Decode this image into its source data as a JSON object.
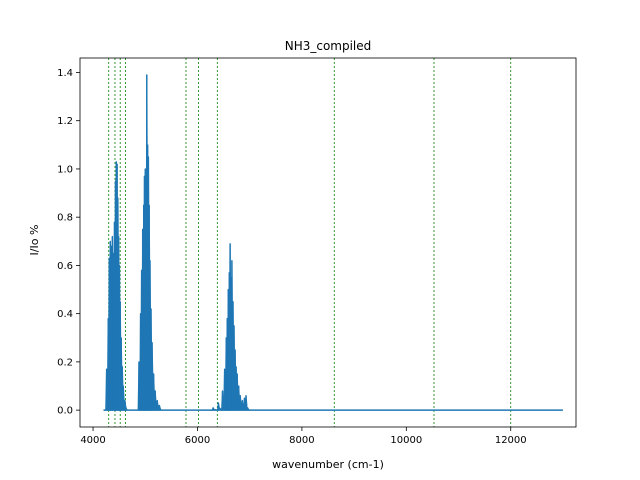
{
  "chart_data": {
    "type": "line",
    "title": "NH3_compiled",
    "xlabel": "wavenumber (cm-1)",
    "ylabel": "I/Io %",
    "xlim": [
      3750,
      13250
    ],
    "ylim": [
      -0.07,
      1.46
    ],
    "xticks": [
      4000,
      6000,
      8000,
      10000,
      12000
    ],
    "yticks": [
      0.0,
      0.2,
      0.4,
      0.6,
      0.8,
      1.0,
      1.2,
      1.4
    ],
    "xtick_labels": [
      "4000",
      "6000",
      "8000",
      "10000",
      "12000"
    ],
    "ytick_labels": [
      "0.0",
      "0.2",
      "0.4",
      "0.6",
      "0.8",
      "1.0",
      "1.2",
      "1.4"
    ],
    "grid": false,
    "series": [
      {
        "color": "#1f77b4",
        "baseline": {
          "x": [
            4200,
            13000
          ],
          "y": 0.0
        },
        "bands": [
          {
            "x_start": 4200,
            "x_end": 4650,
            "peaks": [
              {
                "x": 4260,
                "y": 0.17
              },
              {
                "x": 4290,
                "y": 0.38
              },
              {
                "x": 4310,
                "y": 0.63
              },
              {
                "x": 4330,
                "y": 0.7
              },
              {
                "x": 4350,
                "y": 0.68
              },
              {
                "x": 4370,
                "y": 0.72
              },
              {
                "x": 4390,
                "y": 0.65
              },
              {
                "x": 4410,
                "y": 0.78
              },
              {
                "x": 4430,
                "y": 0.95
              },
              {
                "x": 4445,
                "y": 1.03
              },
              {
                "x": 4460,
                "y": 1.02
              },
              {
                "x": 4475,
                "y": 0.88
              },
              {
                "x": 4490,
                "y": 0.72
              },
              {
                "x": 4505,
                "y": 0.6
              },
              {
                "x": 4520,
                "y": 0.45
              },
              {
                "x": 4540,
                "y": 0.3
              },
              {
                "x": 4560,
                "y": 0.18
              },
              {
                "x": 4580,
                "y": 0.1
              },
              {
                "x": 4610,
                "y": 0.04
              }
            ]
          },
          {
            "x_start": 4850,
            "x_end": 5300,
            "peaks": [
              {
                "x": 4880,
                "y": 0.2
              },
              {
                "x": 4910,
                "y": 0.4
              },
              {
                "x": 4930,
                "y": 0.58
              },
              {
                "x": 4950,
                "y": 0.75
              },
              {
                "x": 4970,
                "y": 0.85
              },
              {
                "x": 4985,
                "y": 0.97
              },
              {
                "x": 5000,
                "y": 1.0
              },
              {
                "x": 5015,
                "y": 0.96
              },
              {
                "x": 5030,
                "y": 1.39
              },
              {
                "x": 5045,
                "y": 1.1
              },
              {
                "x": 5060,
                "y": 1.05
              },
              {
                "x": 5075,
                "y": 0.85
              },
              {
                "x": 5090,
                "y": 0.62
              },
              {
                "x": 5110,
                "y": 0.42
              },
              {
                "x": 5130,
                "y": 0.28
              },
              {
                "x": 5160,
                "y": 0.15
              },
              {
                "x": 5190,
                "y": 0.08
              },
              {
                "x": 5230,
                "y": 0.04
              },
              {
                "x": 5270,
                "y": 0.02
              }
            ]
          },
          {
            "x_start": 6250,
            "x_end": 7000,
            "peaks": [
              {
                "x": 6300,
                "y": 0.01
              },
              {
                "x": 6400,
                "y": 0.03
              },
              {
                "x": 6480,
                "y": 0.08
              },
              {
                "x": 6520,
                "y": 0.17
              },
              {
                "x": 6550,
                "y": 0.3
              },
              {
                "x": 6570,
                "y": 0.38
              },
              {
                "x": 6590,
                "y": 0.5
              },
              {
                "x": 6610,
                "y": 0.57
              },
              {
                "x": 6625,
                "y": 0.69
              },
              {
                "x": 6640,
                "y": 0.55
              },
              {
                "x": 6660,
                "y": 0.62
              },
              {
                "x": 6680,
                "y": 0.45
              },
              {
                "x": 6700,
                "y": 0.35
              },
              {
                "x": 6720,
                "y": 0.25
              },
              {
                "x": 6740,
                "y": 0.18
              },
              {
                "x": 6760,
                "y": 0.15
              },
              {
                "x": 6790,
                "y": 0.1
              },
              {
                "x": 6820,
                "y": 0.06
              },
              {
                "x": 6860,
                "y": 0.04
              },
              {
                "x": 6900,
                "y": 0.05
              },
              {
                "x": 6930,
                "y": 0.06
              },
              {
                "x": 6960,
                "y": 0.01
              }
            ]
          }
        ]
      }
    ],
    "reference_lines": {
      "color": "#008000",
      "style": "dashed",
      "x": [
        4300,
        4420,
        4520,
        4620,
        5780,
        6020,
        6380,
        8620,
        10530,
        12000
      ]
    }
  }
}
